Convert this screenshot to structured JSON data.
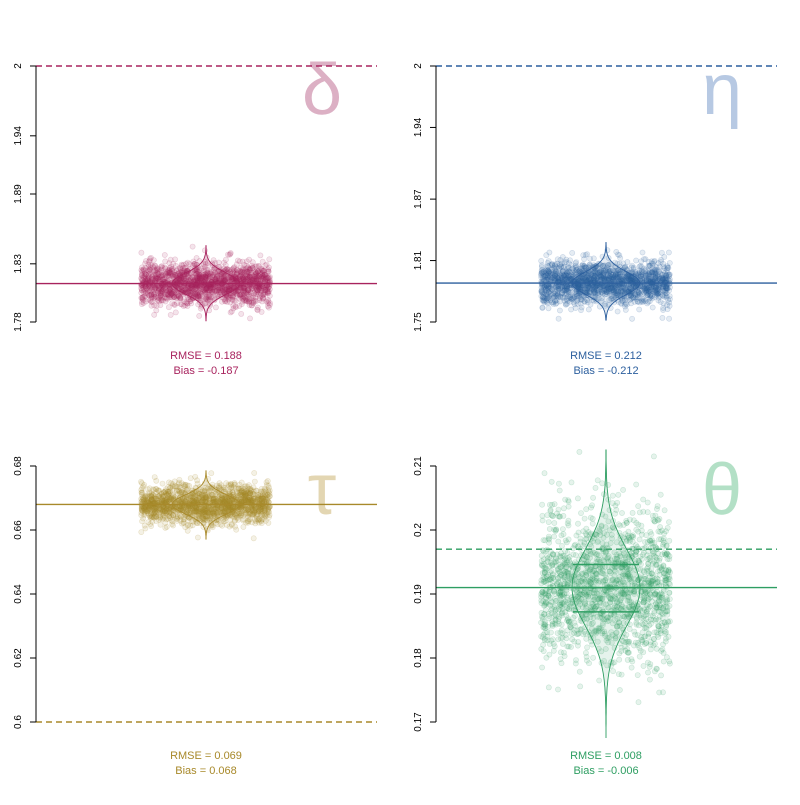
{
  "chart_data": [
    {
      "type": "scatter",
      "symbol": "δ",
      "color": "#a8235e",
      "symbol_color": "#dcb0c4",
      "ylim": [
        1.78,
        2.0
      ],
      "yticks": [
        1.78,
        1.83,
        1.89,
        1.94,
        2
      ],
      "ytick_labels": [
        "1.78",
        "1.83",
        "1.89",
        "1.94",
        "2"
      ],
      "true_value": 2.0,
      "mean_estimate": 1.813,
      "estimate_spread": 0.009,
      "violin_range": [
        1.781,
        1.846
      ],
      "rmse_label": "RMSE = 0.188",
      "bias_label": "Bias = -0.187",
      "grid": false
    },
    {
      "type": "scatter",
      "symbol": "η",
      "color": "#2c5f9e",
      "symbol_color": "#b7c9e3",
      "ylim": [
        1.75,
        2.0
      ],
      "yticks": [
        1.75,
        1.81,
        1.87,
        1.94,
        2
      ],
      "ytick_labels": [
        "1.75",
        "1.81",
        "1.87",
        "1.94",
        "2"
      ],
      "true_value": 2.0,
      "mean_estimate": 1.788,
      "estimate_spread": 0.011,
      "violin_range": [
        1.752,
        1.828
      ],
      "rmse_label": "RMSE = 0.212",
      "bias_label": "Bias = -0.212",
      "grid": false
    },
    {
      "type": "scatter",
      "symbol": "τ",
      "color": "#a8892a",
      "symbol_color": "#e3d6b2",
      "ylim": [
        0.6,
        0.68
      ],
      "yticks": [
        0.6,
        0.62,
        0.64,
        0.66,
        0.68
      ],
      "ytick_labels": [
        "0.6",
        "0.62",
        "0.64",
        "0.66",
        "0.68"
      ],
      "true_value": 0.6,
      "mean_estimate": 0.668,
      "estimate_spread": 0.003,
      "violin_range": [
        0.657,
        0.6785
      ],
      "rmse_label": "RMSE = 0.069",
      "bias_label": "Bias = 0.068",
      "grid": false
    },
    {
      "type": "scatter",
      "symbol": "θ",
      "color": "#2e9e62",
      "symbol_color": "#b3e0c6",
      "ylim": [
        0.17,
        0.21
      ],
      "yticks": [
        0.17,
        0.18,
        0.19,
        0.2,
        0.21
      ],
      "ytick_labels": [
        "0.17",
        "0.18",
        "0.19",
        "0.2",
        "0.21"
      ],
      "true_value": 0.197,
      "mean_estimate": 0.191,
      "estimate_spread": 0.006,
      "violin_range": [
        0.1675,
        0.2125
      ],
      "quartiles": [
        0.1872,
        0.191,
        0.1946
      ],
      "rmse_label": "RMSE = 0.008",
      "bias_label": "Bias = -0.006",
      "grid": false
    }
  ]
}
